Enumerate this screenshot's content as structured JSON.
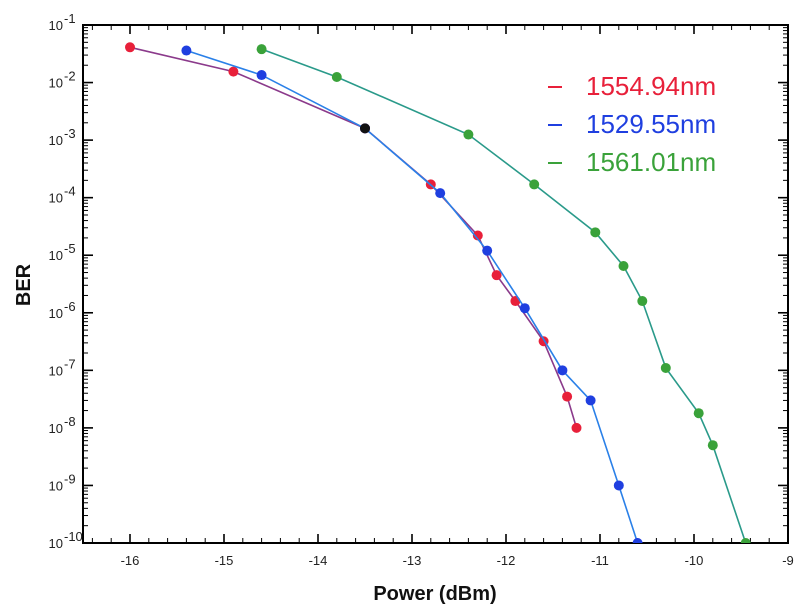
{
  "chart_data": {
    "type": "line",
    "xlabel": "Power (dBm)",
    "ylabel": "BER",
    "xlim": [
      -16.5,
      -9
    ],
    "ylim": [
      1e-10,
      0.1
    ],
    "yscale": "log",
    "x_ticks": [
      "-16",
      "-15",
      "-14",
      "-13",
      "-12",
      "-11",
      "-10",
      "-9"
    ],
    "y_ticks": [
      {
        "base": "10",
        "exp": "-1"
      },
      {
        "base": "10",
        "exp": "-2"
      },
      {
        "base": "10",
        "exp": "-3"
      },
      {
        "base": "10",
        "exp": "-4"
      },
      {
        "base": "10",
        "exp": "-5"
      },
      {
        "base": "10",
        "exp": "-6"
      },
      {
        "base": "10",
        "exp": "-7"
      },
      {
        "base": "10",
        "exp": "-8"
      },
      {
        "base": "10",
        "exp": "-9"
      },
      {
        "base": "10",
        "exp": "-10"
      }
    ],
    "grid": false,
    "legend_position": "top-right",
    "series": [
      {
        "name": "1554.94nm",
        "color": "#e8203a",
        "line_color": "#8b3a8b",
        "x": [
          -16.0,
          -14.9,
          -13.5,
          -12.8,
          -12.3,
          -12.1,
          -11.9,
          -11.6,
          -11.35,
          -11.25
        ],
        "y": [
          0.041,
          0.0155,
          0.0016,
          0.00017,
          2.2e-05,
          4.5e-06,
          1.6e-06,
          3.2e-07,
          3.5e-08,
          1e-08
        ]
      },
      {
        "name": "1529.55nm",
        "color": "#1f3fe0",
        "line_color": "#2a80e8",
        "x": [
          -15.4,
          -14.6,
          -13.5,
          -12.7,
          -12.2,
          -11.8,
          -11.4,
          -11.1,
          -10.8,
          -10.6
        ],
        "y": [
          0.036,
          0.0135,
          0.0016,
          0.00012,
          1.2e-05,
          1.2e-06,
          1e-07,
          3e-08,
          1e-09,
          1e-10
        ]
      },
      {
        "name": "1561.01nm",
        "color": "#3aa23a",
        "line_color": "#2a9a8a",
        "x": [
          -14.6,
          -13.8,
          -12.4,
          -11.7,
          -11.05,
          -10.75,
          -10.55,
          -10.3,
          -9.95,
          -9.8,
          -9.45
        ],
        "y": [
          0.038,
          0.0125,
          0.00125,
          0.00017,
          2.5e-05,
          6.5e-06,
          1.6e-06,
          1.1e-07,
          1.8e-08,
          5e-09,
          1e-10
        ]
      }
    ],
    "black_points": [
      {
        "x": -13.5,
        "y": 0.0016
      }
    ]
  }
}
